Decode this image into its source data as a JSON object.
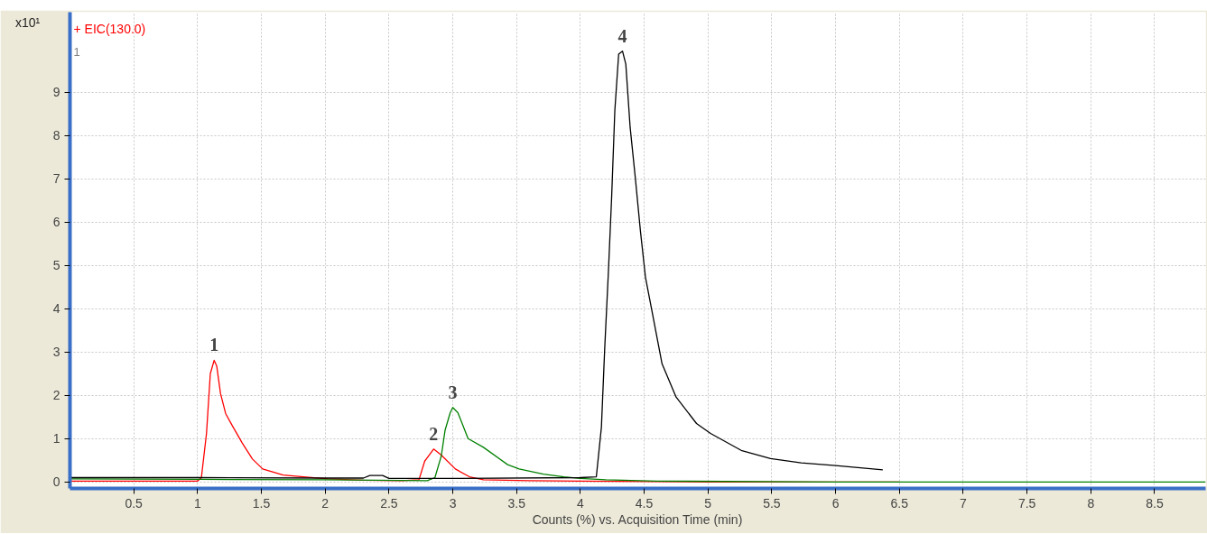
{
  "chart_data": {
    "type": "line",
    "title": "+ EIC(130.0)",
    "ylabel": "x10¹",
    "xlabel": "Counts (%) vs. Acquisition Time (min)",
    "xlim": [
      0,
      8.9
    ],
    "ylim": [
      -0.15,
      10.85
    ],
    "xticks": [
      0.5,
      1,
      1.5,
      2,
      2.5,
      3,
      3.5,
      4,
      4.5,
      5,
      5.5,
      6,
      6.5,
      7,
      7.5,
      8,
      8.5
    ],
    "yticks": [
      0,
      1,
      2,
      3,
      4,
      5,
      6,
      7,
      8,
      9
    ],
    "grid": true,
    "marker": "none",
    "line_style": "solid",
    "series": [
      {
        "color": "#ff0000",
        "x": [
          0,
          0.5,
          0.95,
          1.0,
          1.03,
          1.07,
          1.1,
          1.13,
          1.15,
          1.18,
          1.22,
          1.27,
          1.35,
          1.43,
          1.51,
          1.67,
          1.83,
          2.02,
          2.3,
          2.6,
          2.735,
          2.78,
          2.85,
          2.91,
          3.02,
          3.13,
          3.24,
          3.6,
          4.0,
          5.0,
          6.0,
          6.5
        ],
        "values": [
          0.02,
          0.02,
          0.02,
          0.02,
          0.1,
          1.12,
          2.5,
          2.81,
          2.68,
          2.04,
          1.58,
          1.31,
          0.9,
          0.53,
          0.3,
          0.16,
          0.12,
          0.07,
          0.04,
          0.03,
          0.05,
          0.48,
          0.76,
          0.62,
          0.3,
          0.12,
          0.05,
          0.03,
          0.02,
          0.0,
          0.0,
          0.0
        ]
      },
      {
        "color": "#008000",
        "x": [
          0,
          1.0,
          2.0,
          2.8,
          2.86,
          2.91,
          2.94,
          2.98,
          3.0,
          3.04,
          3.12,
          3.24,
          3.43,
          3.52,
          3.71,
          3.87,
          4.0,
          4.2,
          4.6,
          6.0,
          8.9
        ],
        "values": [
          0.07,
          0.06,
          0.05,
          0.03,
          0.1,
          0.6,
          1.2,
          1.6,
          1.72,
          1.6,
          1.0,
          0.8,
          0.4,
          0.3,
          0.18,
          0.12,
          0.08,
          0.05,
          0.02,
          0.0,
          0.0
        ]
      },
      {
        "color": "#000000",
        "x": [
          0,
          1.0,
          2.0,
          2.3,
          2.35,
          2.45,
          2.5,
          3.0,
          4.0,
          4.125,
          4.165,
          4.19,
          4.22,
          4.245,
          4.27,
          4.3,
          4.33,
          4.356,
          4.39,
          4.43,
          4.47,
          4.51,
          4.56,
          4.64,
          4.75,
          4.91,
          5.02,
          5.26,
          5.49,
          5.73,
          6.0,
          6.37
        ],
        "values": [
          0.1,
          0.1,
          0.09,
          0.09,
          0.15,
          0.15,
          0.08,
          0.08,
          0.1,
          0.12,
          1.27,
          3.04,
          4.88,
          6.58,
          8.58,
          9.88,
          9.95,
          9.65,
          8.19,
          7.04,
          5.81,
          4.73,
          3.96,
          2.73,
          1.96,
          1.35,
          1.12,
          0.73,
          0.54,
          0.44,
          0.38,
          0.28
        ]
      }
    ],
    "annotations": [
      "1",
      {
        "text": "1",
        "x": 1.13,
        "y": 2.81
      },
      {
        "text": "2",
        "x": 2.85,
        "y": 0.76
      },
      {
        "text": "3",
        "x": 3.0,
        "y": 1.72
      },
      {
        "text": "4",
        "x": 4.33,
        "y": 9.95
      }
    ]
  }
}
